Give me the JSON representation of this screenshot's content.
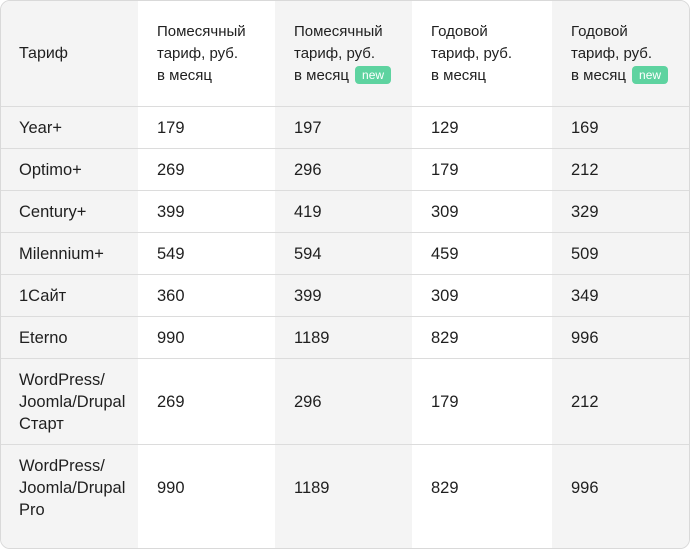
{
  "header": {
    "tariff": "Тариф",
    "col1": [
      "Помесячный",
      "тариф, руб.",
      "в месяц"
    ],
    "col2": [
      "Помесячный",
      "тариф, руб.",
      "в месяц"
    ],
    "col2_badge": "new",
    "col3": [
      "Годовой",
      "тариф, руб.",
      "в месяц"
    ],
    "col4": [
      "Годовой",
      "тариф, руб.",
      "в месяц"
    ],
    "col4_badge": "new"
  },
  "rows": [
    {
      "name": [
        "Year+"
      ],
      "monthly": "179",
      "monthly_new": "197",
      "yearly": "129",
      "yearly_new": "169"
    },
    {
      "name": [
        "Optimo+"
      ],
      "monthly": "269",
      "monthly_new": "296",
      "yearly": "179",
      "yearly_new": "212"
    },
    {
      "name": [
        "Century+"
      ],
      "monthly": "399",
      "monthly_new": "419",
      "yearly": "309",
      "yearly_new": "329"
    },
    {
      "name": [
        "Milennium+"
      ],
      "monthly": "549",
      "monthly_new": "594",
      "yearly": "459",
      "yearly_new": "509"
    },
    {
      "name": [
        "1Сайт"
      ],
      "monthly": "360",
      "monthly_new": "399",
      "yearly": "309",
      "yearly_new": "349"
    },
    {
      "name": [
        "Eterno"
      ],
      "monthly": "990",
      "monthly_new": "1189",
      "yearly": "829",
      "yearly_new": "996"
    },
    {
      "name": [
        "WordPress/",
        "Joomla/Drupal",
        "Старт"
      ],
      "monthly": "269",
      "monthly_new": "296",
      "yearly": "179",
      "yearly_new": "212"
    },
    {
      "name": [
        "WordPress/",
        "Joomla/Drupal",
        "Pro"
      ],
      "monthly": "990",
      "monthly_new": "1189",
      "yearly": "829",
      "yearly_new": "996"
    }
  ],
  "colors": {
    "badge": "#5ed3a0",
    "shade": "#f4f4f4",
    "border": "#dcdcdc"
  }
}
